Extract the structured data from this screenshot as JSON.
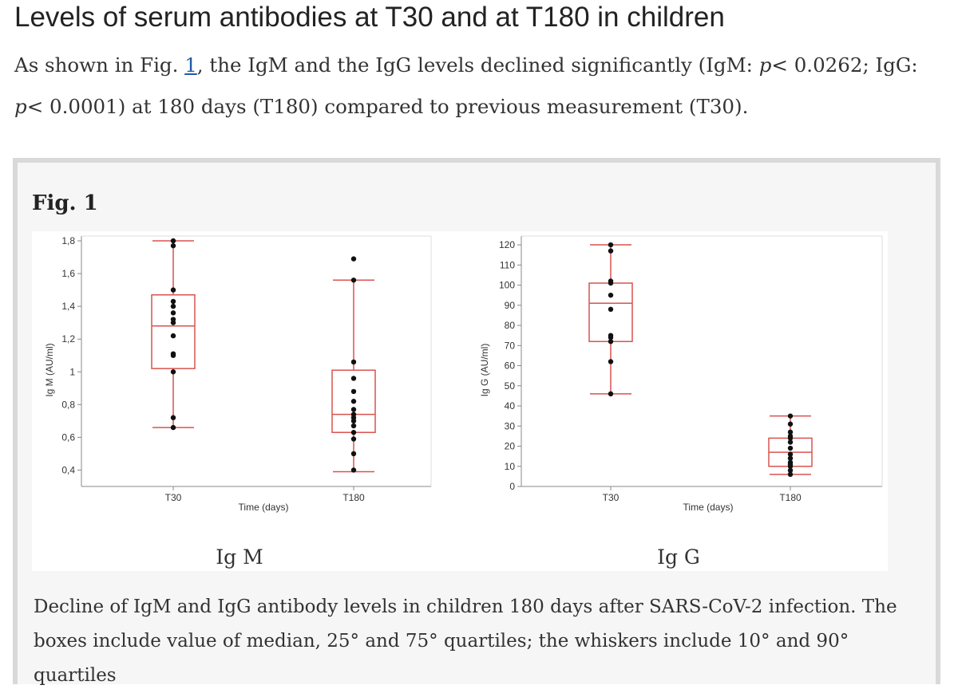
{
  "heading": "Levels of serum antibodies at T30 and at T180 in children",
  "intro": {
    "part1": "As shown in Fig. ",
    "fig_link": "1",
    "part2": ", the IgM and the IgG levels declined significantly (IgM: ",
    "p1": "p",
    "part3": "< 0.0262; IgG: ",
    "p2": "p",
    "part4": "< 0.0001) at 180 days (T180) compared to previous measurement (T30)."
  },
  "figure": {
    "title": "Fig. 1",
    "panel_labels": [
      "Ig M",
      "Ig G"
    ],
    "caption": "Decline of IgM and IgG antibody levels in children 180 days after SARS-CoV-2 infection. The boxes include value of median, 25° and 75° quartiles; the whiskers include 10° and 90° quartiles"
  },
  "colors": {
    "box": "#d9534f",
    "point": "#111111",
    "axis": "#888888"
  },
  "chart_data": [
    {
      "type": "box",
      "ylabel": "Ig M (AU/ml)",
      "xlabel": "Time (days)",
      "categories": [
        "T30",
        "T180"
      ],
      "ylim": [
        0.3,
        1.8
      ],
      "yticks": [
        0.4,
        0.6,
        0.8,
        1,
        1.2,
        1.4,
        1.6,
        1.8
      ],
      "ytick_labels": [
        "0,4",
        "0,6",
        "0,8",
        "1",
        "1,2",
        "1,4",
        "1,6",
        "1,8"
      ],
      "boxes": [
        {
          "category": "T30",
          "whisker_low": 0.66,
          "q1": 1.02,
          "median": 1.28,
          "q3": 1.47,
          "whisker_high": 1.8
        },
        {
          "category": "T180",
          "whisker_low": 0.39,
          "q1": 0.63,
          "median": 0.74,
          "q3": 1.01,
          "whisker_high": 1.56
        }
      ],
      "points": [
        {
          "category": "T30",
          "values": [
            1.8,
            1.77,
            1.5,
            1.43,
            1.4,
            1.36,
            1.32,
            1.3,
            1.22,
            1.11,
            1.1,
            1.0,
            0.72,
            0.66
          ]
        },
        {
          "category": "T180",
          "values": [
            1.69,
            1.56,
            1.06,
            0.96,
            0.88,
            0.82,
            0.77,
            0.74,
            0.72,
            0.7,
            0.67,
            0.63,
            0.59,
            0.5,
            0.4
          ]
        }
      ]
    },
    {
      "type": "box",
      "ylabel": "Ig G (AU/ml)",
      "xlabel": "Time (days)",
      "categories": [
        "T30",
        "T180"
      ],
      "ylim": [
        0,
        122
      ],
      "yticks": [
        0,
        10,
        20,
        30,
        40,
        50,
        60,
        70,
        80,
        90,
        100,
        110,
        120
      ],
      "ytick_labels": [
        "0",
        "10",
        "20",
        "30",
        "40",
        "50",
        "60",
        "70",
        "80",
        "90",
        "100",
        "110",
        "120"
      ],
      "boxes": [
        {
          "category": "T30",
          "whisker_low": 46,
          "q1": 72,
          "median": 91,
          "q3": 101,
          "whisker_high": 120
        },
        {
          "category": "T180",
          "whisker_low": 6,
          "q1": 10,
          "median": 17,
          "q3": 24,
          "whisker_high": 35
        }
      ],
      "points": [
        {
          "category": "T30",
          "values": [
            120,
            117,
            102,
            101,
            95,
            88,
            75,
            74,
            72,
            62,
            46
          ]
        },
        {
          "category": "T180",
          "values": [
            35,
            31,
            27,
            25,
            24,
            22,
            19,
            16,
            14,
            12,
            11,
            10,
            8,
            6
          ]
        }
      ]
    }
  ]
}
